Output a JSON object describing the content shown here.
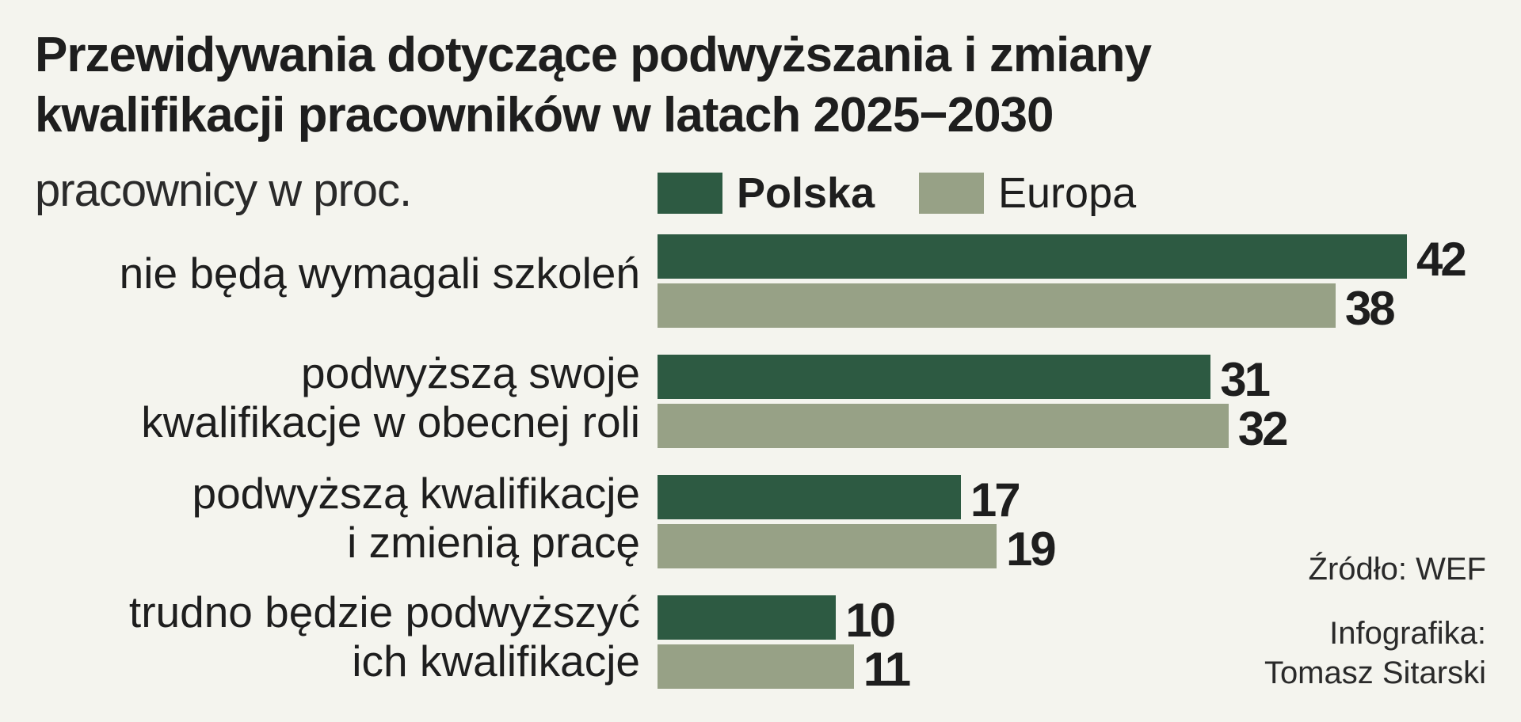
{
  "title_lines": [
    "Przewidywania dotyczące podwyższania i zmiany",
    "kwalifikacji pracowników w latach 2025−2030"
  ],
  "subtitle": "pracownicy w proc.",
  "legend": {
    "polska": {
      "label": "Polska",
      "color": "#2d5a42"
    },
    "europa": {
      "label": "Europa",
      "color": "#97a186"
    }
  },
  "chart_data": {
    "type": "bar",
    "orientation": "horizontal",
    "title": "Przewidywania dotyczące podwyższania i zmiany kwalifikacji pracowników w latach 2025−2030",
    "subtitle": "pracownicy w proc.",
    "categories": [
      [
        "nie będą wymagali szkoleń"
      ],
      [
        "podwyższą swoje",
        "kwalifikacje w obecnej roli"
      ],
      [
        "podwyższą kwalifikacje",
        "i zmienią pracę"
      ],
      [
        "trudno będzie podwyższyć",
        "ich kwalifikacje"
      ]
    ],
    "series": [
      {
        "name": "Polska",
        "values": [
          42,
          31,
          17,
          10
        ],
        "color": "#2d5a42"
      },
      {
        "name": "Europa",
        "values": [
          38,
          32,
          19,
          11
        ],
        "color": "#97a186"
      }
    ],
    "xlim": [
      0,
      42
    ],
    "grid": false,
    "legend_position": "top"
  },
  "footer": {
    "source": "Źródło: WEF",
    "credit_lines": [
      "Infografika:",
      "Tomasz Sitarski"
    ]
  }
}
